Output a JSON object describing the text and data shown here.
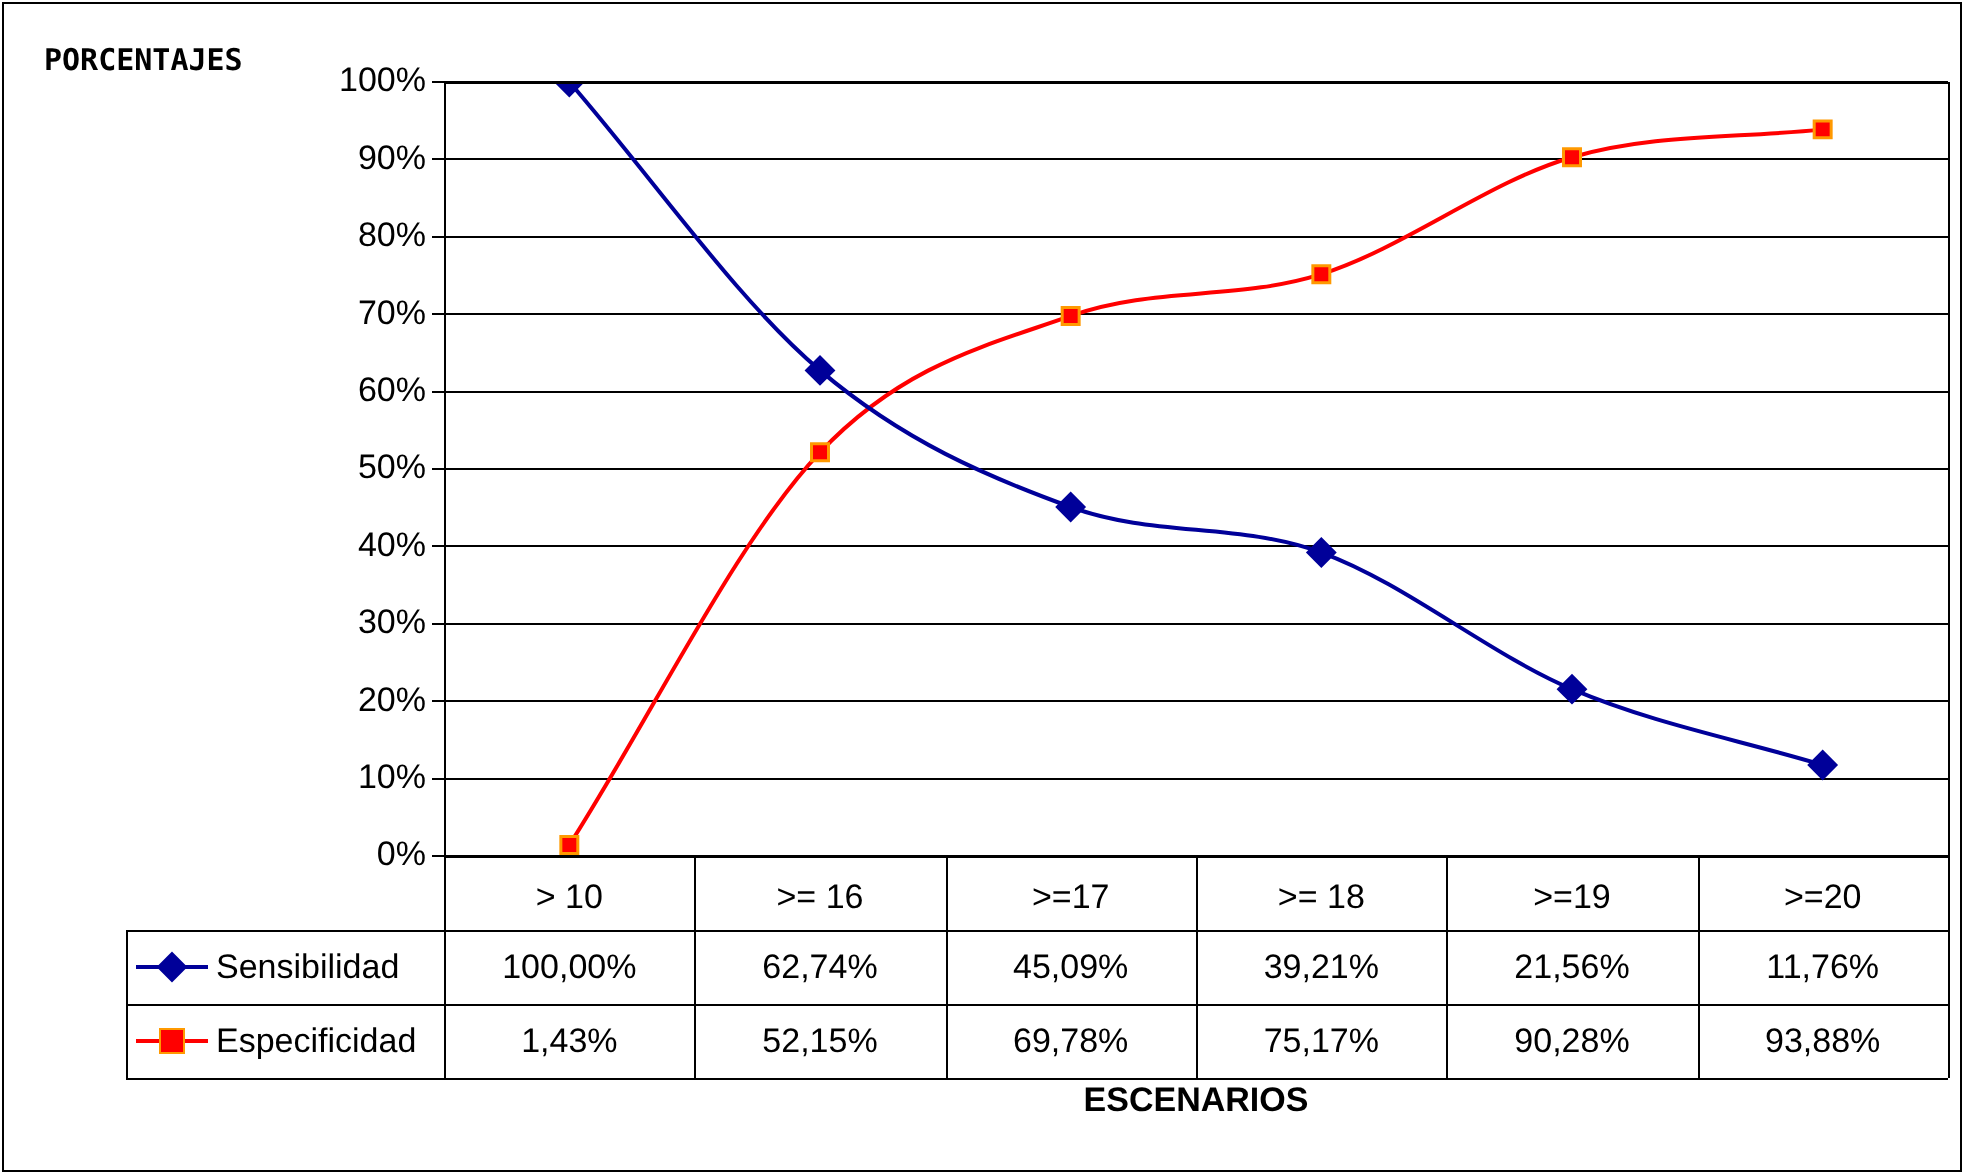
{
  "chart_data": {
    "type": "line",
    "ylabel": "PORCENTAJES",
    "xlabel": "ESCENARIOS",
    "categories": [
      "> 10",
      ">= 16",
      ">=17",
      ">= 18",
      ">=19",
      ">=20"
    ],
    "series": [
      {
        "name": "Sensibilidad",
        "color": "#000099",
        "marker": "diamond",
        "values": [
          100,
          62.74,
          45.09,
          39.21,
          21.56,
          11.76
        ],
        "value_labels": [
          "100,00%",
          "62,74%",
          "45,09%",
          "39,21%",
          "21,56%",
          "11,76%"
        ]
      },
      {
        "name": "Especificidad",
        "color": "#ff0000",
        "marker": "square",
        "values": [
          1.43,
          52.15,
          69.78,
          75.17,
          90.28,
          93.88
        ],
        "value_labels": [
          "1,43%",
          "52,15%",
          "69,78%",
          "75,17%",
          "90,28%",
          "93,88%"
        ]
      }
    ],
    "ylim": [
      0,
      100
    ],
    "yticks": [
      {
        "value": 0,
        "label": "0%"
      },
      {
        "value": 10,
        "label": "10%"
      },
      {
        "value": 20,
        "label": "20%"
      },
      {
        "value": 30,
        "label": "30%"
      },
      {
        "value": 40,
        "label": "40%"
      },
      {
        "value": 50,
        "label": "50%"
      },
      {
        "value": 60,
        "label": "60%"
      },
      {
        "value": 70,
        "label": "70%"
      },
      {
        "value": 80,
        "label": "80%"
      },
      {
        "value": 90,
        "label": "90%"
      },
      {
        "value": 100,
        "label": "100%"
      }
    ],
    "grid": "y",
    "legend": "bottom"
  }
}
